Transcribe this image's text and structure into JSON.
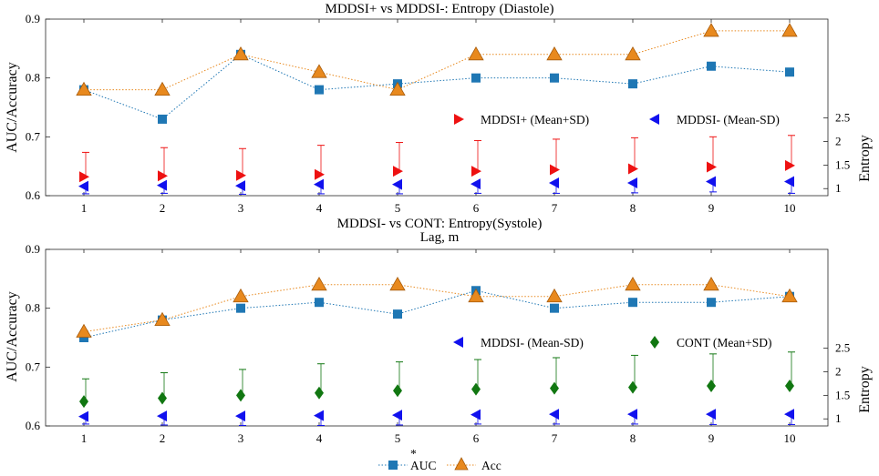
{
  "chart_data": [
    {
      "type": "line",
      "title": "MDDSI+ vs MDDSI-: Entropy (Diastole)",
      "xlabel": "Lag, m",
      "ylabel": "AUC/Accuracy",
      "y2label": "Entropy",
      "x": [
        1,
        2,
        3,
        4,
        5,
        6,
        7,
        8,
        9,
        10
      ],
      "xticks": [
        "1",
        "2",
        "3",
        "4",
        "5",
        "6",
        "7",
        "8",
        "9",
        "10"
      ],
      "ylim": [
        0.6,
        0.9
      ],
      "yticks": [
        "0.6",
        "0.7",
        "0.8",
        "0.9"
      ],
      "y2lim": [
        0.85,
        4.6
      ],
      "y2ticks": [
        "1",
        "1.5",
        "2",
        "2.5"
      ],
      "series": [
        {
          "name": "AUC",
          "axis": "left",
          "marker": "square",
          "color": "#1f77b4",
          "values": [
            0.78,
            0.73,
            0.84,
            0.78,
            0.79,
            0.8,
            0.8,
            0.79,
            0.82,
            0.81
          ]
        },
        {
          "name": "Acc",
          "axis": "left",
          "marker": "triangle-up",
          "color": "#e8891e",
          "values": [
            0.78,
            0.78,
            0.84,
            0.81,
            0.78,
            0.84,
            0.84,
            0.84,
            0.88,
            0.88
          ]
        }
      ],
      "entropy_series": [
        {
          "name": "MDDSI+ (Mean+SD)",
          "marker": "triangle-right",
          "color": "#ee1111",
          "mean": [
            1.25,
            1.27,
            1.28,
            1.3,
            1.37,
            1.37,
            1.4,
            1.42,
            1.46,
            1.49
          ],
          "upper": [
            1.77,
            1.87,
            1.85,
            1.92,
            1.98,
            2.02,
            2.05,
            2.08,
            2.1,
            2.13
          ]
        },
        {
          "name": "MDDSI- (Mean-SD)",
          "marker": "triangle-left",
          "color": "#1111ee",
          "mean": [
            1.05,
            1.07,
            1.06,
            1.09,
            1.09,
            1.1,
            1.12,
            1.12,
            1.15,
            1.15
          ],
          "lower": [
            0.89,
            0.9,
            0.88,
            0.89,
            0.89,
            0.9,
            0.9,
            0.91,
            0.93,
            0.9
          ]
        }
      ],
      "legend": [
        "MDDSI+ (Mean+SD)",
        "MDDSI- (Mean-SD)"
      ]
    },
    {
      "type": "line",
      "title": "MDDSI- vs CONT: Entropy(Systole)",
      "xlabel": "",
      "ylabel": "AUC/Accuracy",
      "y2label": "Entropy",
      "x": [
        1,
        2,
        3,
        4,
        5,
        6,
        7,
        8,
        9,
        10
      ],
      "xticks": [
        "1",
        "2",
        "3",
        "4",
        "5",
        "6",
        "7",
        "8",
        "9",
        "10"
      ],
      "ylim": [
        0.6,
        0.9
      ],
      "yticks": [
        "0.6",
        "0.7",
        "0.8",
        "0.9"
      ],
      "y2lim": [
        0.85,
        4.6
      ],
      "y2ticks": [
        "1",
        "1.5",
        "2",
        "2.5"
      ],
      "series": [
        {
          "name": "AUC",
          "axis": "left",
          "marker": "square",
          "color": "#1f77b4",
          "values": [
            0.75,
            0.78,
            0.8,
            0.81,
            0.79,
            0.83,
            0.8,
            0.81,
            0.81,
            0.82
          ]
        },
        {
          "name": "Acc",
          "axis": "left",
          "marker": "triangle-up",
          "color": "#e8891e",
          "values": [
            0.76,
            0.78,
            0.82,
            0.84,
            0.84,
            0.82,
            0.82,
            0.84,
            0.84,
            0.82
          ]
        }
      ],
      "entropy_series": [
        {
          "name": "MDDSI- (Mean-SD)",
          "marker": "triangle-left",
          "color": "#1111ee",
          "mean": [
            1.05,
            1.06,
            1.06,
            1.07,
            1.08,
            1.09,
            1.1,
            1.1,
            1.1,
            1.1
          ],
          "lower": [
            0.89,
            0.87,
            0.86,
            0.86,
            0.87,
            0.89,
            0.89,
            0.89,
            0.88,
            0.88
          ]
        },
        {
          "name": "CONT (Mean+SD)",
          "marker": "diamond",
          "color": "#117711",
          "mean": [
            1.37,
            1.44,
            1.5,
            1.55,
            1.6,
            1.63,
            1.65,
            1.67,
            1.7,
            1.7
          ],
          "upper": [
            1.85,
            1.98,
            2.05,
            2.17,
            2.21,
            2.26,
            2.3,
            2.35,
            2.38,
            2.42
          ]
        }
      ],
      "legend": [
        "MDDSI- (Mean-SD)",
        "CONT (Mean+SD)"
      ]
    }
  ],
  "bottom_legend": {
    "auc_label": "AUC",
    "acc_label": "Acc",
    "auc_color": "#1f77b4",
    "acc_color": "#e8891e"
  }
}
